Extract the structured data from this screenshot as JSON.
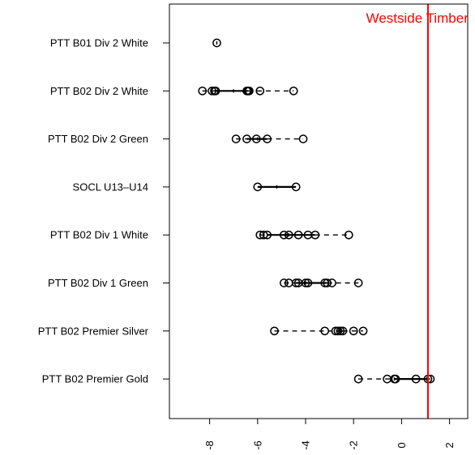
{
  "chart_data": {
    "type": "boxplot-horizontal",
    "title": "",
    "xlabel": "",
    "ylabel": "",
    "xlim": [
      -9.5,
      2.5
    ],
    "x_ticks": [
      "-8",
      "-6",
      "-4",
      "-2",
      "0",
      "2"
    ],
    "x_tick_values": [
      -8,
      -6,
      -4,
      -2,
      0,
      2
    ],
    "reference_line": {
      "value": 1.1,
      "label": "Westside Timbers G",
      "color": "#ff0000"
    },
    "categories": [
      "PTT B01 Div 2 White",
      "PTT B02 Div 2 White",
      "PTT B02 Div 2 Green",
      "SOCL U13–U14",
      "PTT B02 Div 1 White",
      "PTT B02 Div 1 Green",
      "PTT B02 Premier Silver",
      "PTT B02 Premier Gold"
    ],
    "series": [
      {
        "min": -7.7,
        "q1": -7.7,
        "median": -7.7,
        "q3": -7.7,
        "max": -7.7,
        "points": [
          -7.7
        ]
      },
      {
        "min": -8.3,
        "q1": -7.8,
        "median": -7.0,
        "q3": -6.4,
        "max": -4.5,
        "points": [
          -8.3,
          -7.9,
          -7.8,
          -7.75,
          -6.45,
          -6.4,
          -6.35,
          -5.9,
          -4.5
        ]
      },
      {
        "min": -6.9,
        "q1": -6.45,
        "median": -6.0,
        "q3": -5.6,
        "max": -4.1,
        "points": [
          -6.9,
          -6.45,
          -6.05,
          -5.6,
          -4.1
        ]
      },
      {
        "min": -6.0,
        "q1": -6.0,
        "median": -5.2,
        "q3": -4.4,
        "max": -4.4,
        "points": [
          -6.0,
          -4.4
        ]
      },
      {
        "min": -5.9,
        "q1": -5.6,
        "median": -4.7,
        "q3": -3.6,
        "max": -2.2,
        "points": [
          -5.9,
          -5.75,
          -5.6,
          -4.9,
          -4.7,
          -4.3,
          -3.9,
          -3.6,
          -2.2
        ]
      },
      {
        "min": -4.9,
        "q1": -4.4,
        "median": -4.0,
        "q3": -3.1,
        "max": -1.8,
        "points": [
          -4.9,
          -4.7,
          -4.4,
          -4.3,
          -4.0,
          -3.9,
          -3.2,
          -3.1,
          -2.9,
          -1.8
        ]
      },
      {
        "min": -5.3,
        "q1": -2.7,
        "median": -2.55,
        "q3": -2.45,
        "max": -1.6,
        "points": [
          -5.3,
          -3.2,
          -2.75,
          -2.65,
          -2.55,
          -2.45,
          -2.0,
          -1.6
        ]
      },
      {
        "min": -1.8,
        "q1": -0.3,
        "median": -0.3,
        "q3": 1.1,
        "max": 1.2,
        "points": [
          -1.8,
          -0.6,
          -0.3,
          -0.25,
          0.6,
          1.1,
          1.2
        ]
      }
    ]
  }
}
